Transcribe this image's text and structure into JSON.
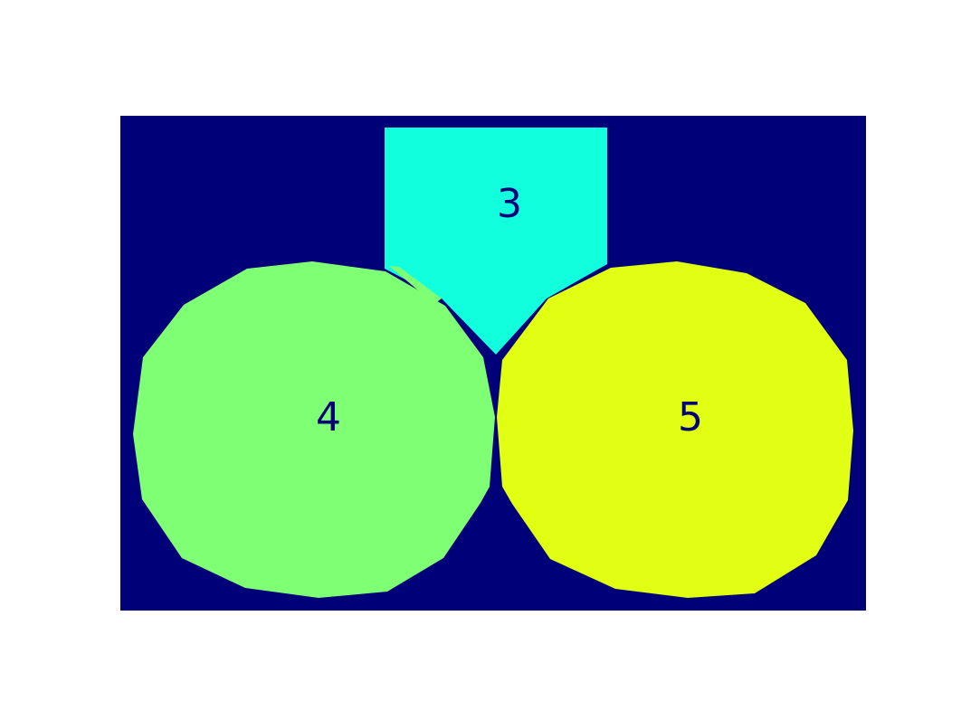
{
  "colors": {
    "background": "#000078",
    "region_3": "#12ffdd",
    "region_4": "#7fff74",
    "region_5": "#e0ff12",
    "label_color": "#000078"
  },
  "regions": [
    {
      "id": "region-3",
      "label": "3",
      "shape": "pentagon",
      "color_key": "region_3"
    },
    {
      "id": "region-4",
      "label": "4",
      "shape": "polygon-circle",
      "color_key": "region_4"
    },
    {
      "id": "region-5",
      "label": "5",
      "shape": "polygon-circle",
      "color_key": "region_5"
    }
  ]
}
